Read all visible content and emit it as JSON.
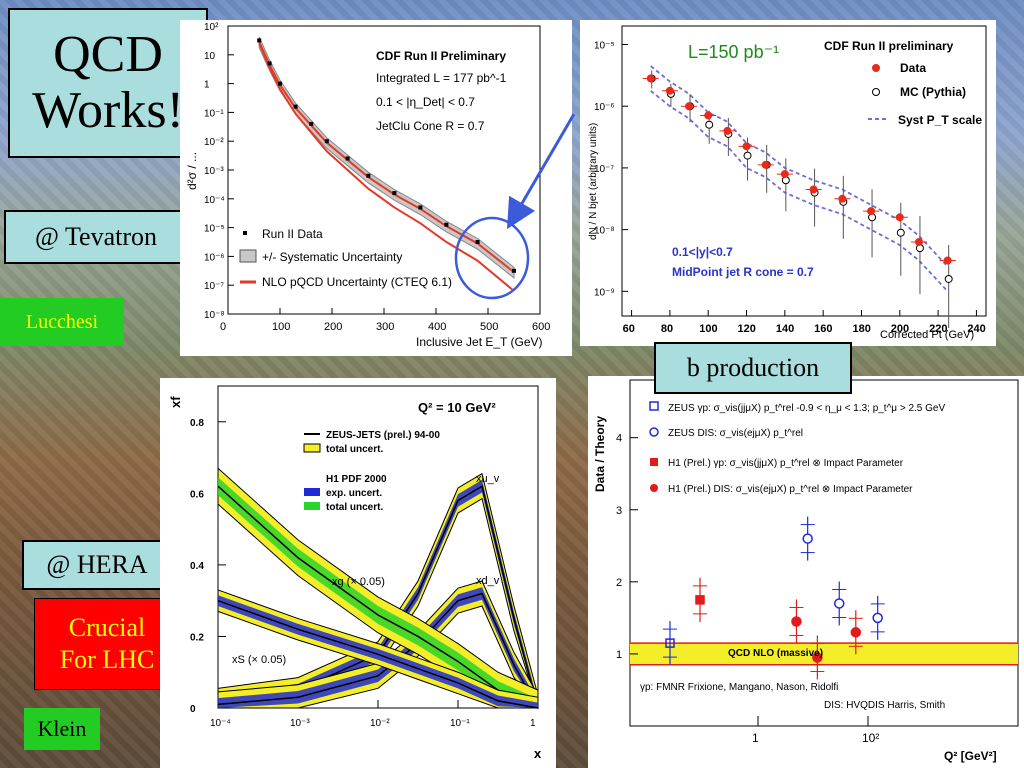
{
  "slide": {
    "title": "QCD Works!",
    "title_line1": "QCD",
    "title_line2": "Works!",
    "tevatron_label": "@ Tevatron",
    "lucchesi_label": "Lucchesi",
    "hera_label": "@ HERA",
    "crucial_line1": "Crucial",
    "crucial_line2": "For LHC",
    "klein_label": "Klein",
    "b_production_label": "b production"
  },
  "colors": {
    "title_box": "#aadddd",
    "green_box": "#22cc22",
    "red_box": "#ff0000",
    "red_text": "#ffff00"
  },
  "chart_data": [
    {
      "id": "cdf_incl_jet",
      "type": "scatter",
      "title": "CDF Run II Preliminary",
      "annotations": [
        "Integrated L = 177 pb^-1",
        "0.1 < |η_Det| < 0.7",
        "JetClu Cone R = 0.7"
      ],
      "xlabel": "Inclusive Jet E_T (GeV)",
      "ylabel": "d²σ / ...",
      "xlim": [
        0,
        600
      ],
      "ylim_log10": [
        -8,
        2
      ],
      "y_log": true,
      "x_ticks": [
        "0",
        "100",
        "200",
        "300",
        "400",
        "500",
        "600"
      ],
      "y_ticks": [
        "10⁻⁸",
        "10⁻⁷",
        "10⁻⁶",
        "10⁻⁵",
        "10⁻⁴",
        "10⁻³",
        "10⁻²",
        "10⁻¹",
        "1",
        "10",
        "10²"
      ],
      "legend": [
        "Run II Data",
        "+/- Systematic Uncertainty",
        "NLO pQCD Uncertainty (CTEQ 6.1)"
      ],
      "x": [
        60,
        80,
        100,
        130,
        160,
        190,
        230,
        270,
        320,
        370,
        420,
        480,
        550
      ],
      "log10_y": [
        1.5,
        0.7,
        0.0,
        -0.8,
        -1.4,
        -2.0,
        -2.6,
        -3.2,
        -3.8,
        -4.3,
        -4.9,
        -5.5,
        -6.5
      ]
    },
    {
      "id": "cdf_b_jet",
      "type": "scatter",
      "title": "CDF Run II preliminary",
      "lumi": "L=150 pb⁻¹",
      "annotations": [
        "0.1<|y|<0.7",
        "MidPoint jet R cone = 0.7"
      ],
      "xlabel": "Corrected Pt (GeV)",
      "ylabel": "dN / N bjet (arbitrary units)",
      "xlim": [
        55,
        245
      ],
      "ylim_log10": [
        -9.4,
        -4.7
      ],
      "y_log": true,
      "x_ticks": [
        "60",
        "80",
        "100",
        "120",
        "140",
        "160",
        "180",
        "200",
        "220",
        "240"
      ],
      "y_ticks": [
        "10⁻⁹",
        "10⁻⁸",
        "10⁻⁷",
        "10⁻⁶",
        "10⁻⁵"
      ],
      "legend": [
        "Data",
        "MC (Pythia)",
        "Syst P_T scale"
      ],
      "series": [
        {
          "name": "Data",
          "x": [
            70,
            80,
            90,
            100,
            110,
            120,
            130,
            140,
            155,
            170,
            185,
            200,
            210,
            225
          ],
          "log10_y": [
            -5.55,
            -5.75,
            -6.0,
            -6.15,
            -6.4,
            -6.65,
            -6.95,
            -7.1,
            -7.35,
            -7.5,
            -7.7,
            -7.8,
            -8.2,
            -8.5
          ]
        },
        {
          "name": "MC (Pythia)",
          "x": [
            70,
            80,
            90,
            100,
            110,
            120,
            130,
            140,
            155,
            170,
            185,
            200,
            210,
            225
          ],
          "log10_y": [
            -5.55,
            -5.8,
            -6.0,
            -6.3,
            -6.45,
            -6.8,
            -6.95,
            -7.2,
            -7.4,
            -7.55,
            -7.8,
            -8.05,
            -8.3,
            -8.8
          ]
        }
      ]
    },
    {
      "id": "hera_pdf",
      "type": "line",
      "title": "Q² = 10 GeV²",
      "xlabel": "x",
      "ylabel": "xf",
      "x_log": true,
      "xlim_log10": [
        -4,
        0
      ],
      "ylim": [
        0,
        0.9
      ],
      "x_ticks": [
        "10⁻⁴",
        "10⁻³",
        "10⁻²",
        "10⁻¹",
        "1"
      ],
      "y_ticks": [
        "0",
        "0.2",
        "0.4",
        "0.6",
        "0.8"
      ],
      "legend": [
        "ZEUS-JETS (prel.) 94-00",
        "total uncert.",
        "H1 PDF 2000",
        "exp. uncert.",
        "total uncert."
      ],
      "curve_labels": [
        "xu_v",
        "xd_v",
        "xg (× 0.05)",
        "xS (× 0.05)"
      ],
      "series": [
        {
          "name": "xu_v",
          "log10_x": [
            -4,
            -3,
            -2,
            -1.5,
            -1,
            -0.7,
            -0.3,
            0
          ],
          "y": [
            0.02,
            0.05,
            0.15,
            0.32,
            0.58,
            0.62,
            0.25,
            0.0
          ]
        },
        {
          "name": "xd_v",
          "log10_x": [
            -4,
            -3,
            -2,
            -1.5,
            -1,
            -0.7,
            -0.3,
            0
          ],
          "y": [
            0.01,
            0.03,
            0.09,
            0.18,
            0.3,
            0.32,
            0.12,
            0.0
          ]
        },
        {
          "name": "xg (× 0.05)",
          "log10_x": [
            -4,
            -3,
            -2,
            -1.5,
            -1,
            -0.5,
            0
          ],
          "y": [
            0.62,
            0.42,
            0.26,
            0.2,
            0.13,
            0.05,
            0.0
          ]
        },
        {
          "name": "xS (× 0.05)",
          "log10_x": [
            -4,
            -3,
            -2,
            -1.5,
            -1,
            -0.5,
            0
          ],
          "y": [
            0.3,
            0.22,
            0.15,
            0.11,
            0.07,
            0.02,
            0.0
          ]
        }
      ]
    },
    {
      "id": "hera_b_ratio",
      "type": "scatter",
      "title": "b production",
      "xlabel": "Q² [GeV²]",
      "ylabel": "Data / Theory",
      "x_log": true,
      "ylim": [
        0,
        4.8
      ],
      "y_ticks": [
        "1",
        "2",
        "3",
        "4"
      ],
      "x_ticks": [
        "1",
        "10²"
      ],
      "band_label": "QCD NLO (massive)",
      "band": [
        0.85,
        1.15
      ],
      "footnotes": [
        "γp: FMNR Frixione, Mangano, Nason, Ridolfi",
        "DIS: HVQDIS Harris, Smith"
      ],
      "legend": [
        "ZEUS γp: σ_vis(jjμX) p_t^rel  -0.9 < η_μ < 1.3; p_t^μ > 2.5 GeV",
        "ZEUS DIS: σ_vis(ejμX) p_t^rel",
        "H1 (Prel.) γp: σ_vis(jjμX) p_t^rel ⊗ Impact Parameter",
        "H1 (Prel.) DIS: σ_vis(ejμX) p_t^rel ⊗ Impact Parameter"
      ],
      "series": [
        {
          "name": "ZEUS γp",
          "points": [
            {
              "x": "γp",
              "y": 1.15
            }
          ]
        },
        {
          "name": "ZEUS DIS",
          "points": [
            {
              "x": 8,
              "y": 2.6
            },
            {
              "x": 30,
              "y": 1.7
            },
            {
              "x": 150,
              "y": 1.5
            }
          ]
        },
        {
          "name": "H1 (Prel.) γp",
          "points": [
            {
              "x": "γp",
              "y": 1.75
            }
          ]
        },
        {
          "name": "H1 (Prel.) DIS",
          "points": [
            {
              "x": 5,
              "y": 1.45
            },
            {
              "x": 12,
              "y": 0.95
            },
            {
              "x": 60,
              "y": 1.3
            }
          ]
        }
      ]
    }
  ]
}
